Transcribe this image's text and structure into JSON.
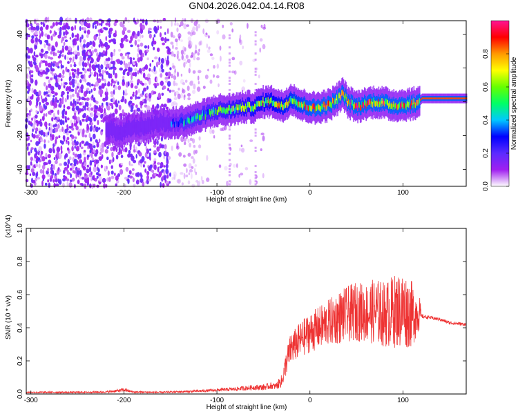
{
  "title": "GN04.2026.042.04.14.R08",
  "colors": {
    "snr_line": "#ee3333",
    "frame": "#000000",
    "colormap": [
      "#ffffff",
      "#a020f0",
      "#5b2bff",
      "#0000ff",
      "#00c8ff",
      "#00ff66",
      "#66ff00",
      "#ffff00",
      "#ff9900",
      "#ff0000",
      "#ff1493"
    ]
  },
  "chart_data": [
    {
      "type": "heatmap",
      "title": "GN04.2026.042.04.14.R08",
      "xlabel": "Height of straight line (km)",
      "ylabel": "Frequency (Hz)",
      "xlim": [
        -305,
        168
      ],
      "ylim": [
        -50,
        48
      ],
      "xticks": [
        -300,
        -200,
        -100,
        0,
        100
      ],
      "xtick_labels": [
        "-300",
        "-200",
        "-100",
        "0",
        "100"
      ],
      "yticks": [
        -40,
        -20,
        0,
        20,
        40
      ],
      "ytick_labels": [
        "-40",
        "-20",
        "0",
        "20",
        "40"
      ],
      "colorbar": {
        "label": "Normalized spectral amplitude",
        "range": [
          0,
          1
        ],
        "ticks": [
          0.0,
          0.2,
          0.4,
          0.6,
          0.8
        ],
        "tick_labels": [
          "0.0",
          "0.2",
          "0.4",
          "0.6",
          "0.8"
        ]
      },
      "ridge": {
        "x": [
          -215,
          -205,
          -190,
          -180,
          -160,
          -150,
          -140,
          -130,
          -120,
          -110,
          -100,
          -90,
          -80,
          -70,
          -60,
          -50,
          -40,
          -30,
          -20,
          -10,
          0,
          5,
          10,
          20,
          30,
          35,
          40,
          50,
          60,
          70,
          80,
          90,
          100,
          110,
          115,
          120,
          168
        ],
        "frequency": [
          -16,
          -19,
          -15,
          -15,
          -12,
          -13,
          -12,
          -11,
          -9,
          -7,
          -5,
          -5,
          -4,
          -3,
          -3,
          0,
          0,
          -3,
          2,
          -2,
          -3,
          -4,
          -3,
          -2,
          2,
          5,
          0,
          -3,
          -1,
          0,
          -1,
          -2,
          -2,
          -1,
          -1,
          2,
          2
        ]
      }
    },
    {
      "type": "line",
      "xlabel": "Height of straight line (km)",
      "ylabel": "SNR (10 * v/v)",
      "y_multiplier": "(x10^4)",
      "xlim": [
        -305,
        168
      ],
      "ylim": [
        0,
        1.0
      ],
      "xticks": [
        -300,
        -200,
        -100,
        0,
        100
      ],
      "xtick_labels": [
        "-300",
        "-200",
        "-100",
        "0",
        "100"
      ],
      "yticks": [
        0.0,
        0.2,
        0.4,
        0.6,
        0.8,
        1.0
      ],
      "ytick_labels": [
        "0.0",
        "0.2",
        "0.4",
        "0.6",
        "0.8",
        "1.0"
      ],
      "series": [
        {
          "x": [
            -305,
            -280,
            -250,
            -220,
            -205,
            -200,
            -190,
            -160,
            -130,
            -110,
            -95,
            -80,
            -70,
            -60,
            -50,
            -42,
            -37,
            -30,
            -25,
            -20,
            -15,
            -10,
            0,
            10,
            20,
            30,
            40,
            50,
            60,
            70,
            80,
            90,
            100,
            110,
            118,
            120,
            130,
            140,
            150,
            168
          ],
          "y": [
            0.01,
            0.01,
            0.01,
            0.012,
            0.02,
            0.025,
            0.012,
            0.01,
            0.015,
            0.02,
            0.025,
            0.03,
            0.035,
            0.04,
            0.04,
            0.05,
            0.045,
            0.08,
            0.2,
            0.28,
            0.3,
            0.33,
            0.37,
            0.4,
            0.43,
            0.46,
            0.48,
            0.5,
            0.49,
            0.5,
            0.48,
            0.5,
            0.51,
            0.48,
            0.49,
            0.47,
            0.46,
            0.45,
            0.43,
            0.42
          ],
          "spread": [
            0.005,
            0.005,
            0.005,
            0.006,
            0.01,
            0.012,
            0.006,
            0.005,
            0.007,
            0.008,
            0.01,
            0.012,
            0.014,
            0.016,
            0.018,
            0.02,
            0.02,
            0.04,
            0.08,
            0.1,
            0.1,
            0.11,
            0.12,
            0.13,
            0.14,
            0.16,
            0.17,
            0.18,
            0.18,
            0.2,
            0.2,
            0.22,
            0.24,
            0.2,
            0.1,
            0.012,
            0.01,
            0.01,
            0.01,
            0.01
          ]
        }
      ]
    }
  ]
}
